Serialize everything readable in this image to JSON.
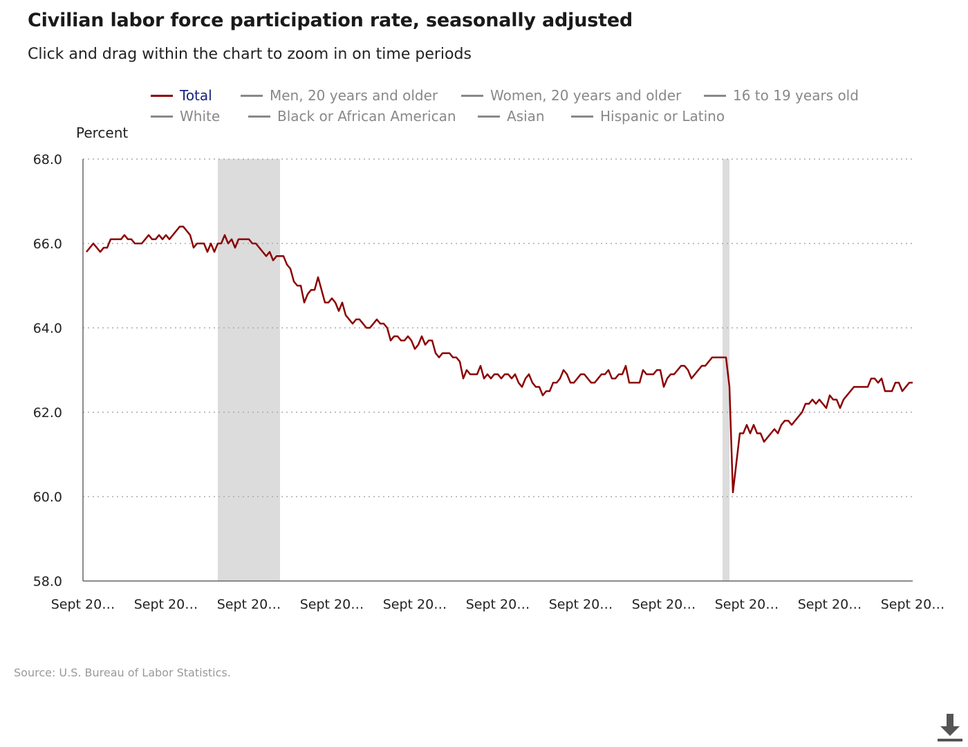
{
  "header": {
    "title": "Civilian labor force participation rate, seasonally adjusted",
    "subtitle": "Click and drag within the chart to zoom in on time periods"
  },
  "legend": [
    {
      "label": "Total",
      "active": true
    },
    {
      "label": "Men, 20 years and older",
      "active": false
    },
    {
      "label": "Women, 20 years and older",
      "active": false
    },
    {
      "label": "16 to 19 years old",
      "active": false
    },
    {
      "label": "White",
      "active": false
    },
    {
      "label": "Black or African American",
      "active": false
    },
    {
      "label": "Asian",
      "active": false
    },
    {
      "label": "Hispanic or Latino",
      "active": false
    }
  ],
  "source": "Source: U.S. Bureau of Labor Statistics.",
  "download_icon": "download-icon",
  "colors": {
    "series": "#8b0000",
    "recession": "#dcdcdc",
    "legend_active_text": "#1a237e",
    "legend_inactive": "#888888",
    "grid": "#aaaaaa"
  },
  "chart_data": {
    "type": "line",
    "ylabel": "Percent",
    "ylim": [
      58.0,
      68.0
    ],
    "yticks": [
      "58.0",
      "60.0",
      "62.0",
      "64.0",
      "66.0",
      "68.0"
    ],
    "xticks": [
      "Sept 20…",
      "Sept 20…",
      "Sept 20…",
      "Sept 20…",
      "Sept 20…",
      "Sept 20…",
      "Sept 20…",
      "Sept 20…",
      "Sept 20…",
      "Sept 20…",
      "Sept 20…"
    ],
    "xlim": [
      0,
      240
    ],
    "grid": "horizontal dotted",
    "recessions": [
      [
        39,
        57
      ],
      [
        185,
        187
      ]
    ],
    "series": [
      {
        "name": "Total",
        "values": [
          [
            1,
            65.8
          ],
          [
            3,
            66.0
          ],
          [
            5,
            65.8
          ],
          [
            6,
            65.9
          ],
          [
            7,
            65.9
          ],
          [
            8,
            66.1
          ],
          [
            10,
            66.1
          ],
          [
            11,
            66.1
          ],
          [
            12,
            66.2
          ],
          [
            13,
            66.1
          ],
          [
            14,
            66.1
          ],
          [
            15,
            66.0
          ],
          [
            17,
            66.0
          ],
          [
            18,
            66.1
          ],
          [
            19,
            66.2
          ],
          [
            20,
            66.1
          ],
          [
            21,
            66.1
          ],
          [
            22,
            66.2
          ],
          [
            23,
            66.1
          ],
          [
            24,
            66.2
          ],
          [
            25,
            66.1
          ],
          [
            26,
            66.2
          ],
          [
            27,
            66.3
          ],
          [
            28,
            66.4
          ],
          [
            29,
            66.4
          ],
          [
            30,
            66.3
          ],
          [
            31,
            66.2
          ],
          [
            32,
            65.9
          ],
          [
            33,
            66.0
          ],
          [
            35,
            66.0
          ],
          [
            36,
            65.8
          ],
          [
            37,
            66.0
          ],
          [
            38,
            65.8
          ],
          [
            39,
            66.0
          ],
          [
            40,
            66.0
          ],
          [
            41,
            66.2
          ],
          [
            42,
            66.0
          ],
          [
            43,
            66.1
          ],
          [
            44,
            65.9
          ],
          [
            45,
            66.1
          ],
          [
            48,
            66.1
          ],
          [
            49,
            66.0
          ],
          [
            50,
            66.0
          ],
          [
            51,
            65.9
          ],
          [
            52,
            65.8
          ],
          [
            53,
            65.7
          ],
          [
            54,
            65.8
          ],
          [
            55,
            65.6
          ],
          [
            56,
            65.7
          ],
          [
            58,
            65.7
          ],
          [
            59,
            65.5
          ],
          [
            60,
            65.4
          ],
          [
            61,
            65.1
          ],
          [
            62,
            65.0
          ],
          [
            63,
            65.0
          ],
          [
            64,
            64.6
          ],
          [
            65,
            64.8
          ],
          [
            66,
            64.9
          ],
          [
            67,
            64.9
          ],
          [
            68,
            65.2
          ],
          [
            69,
            64.9
          ],
          [
            70,
            64.6
          ],
          [
            71,
            64.6
          ],
          [
            72,
            64.7
          ],
          [
            73,
            64.6
          ],
          [
            74,
            64.4
          ],
          [
            75,
            64.6
          ],
          [
            76,
            64.3
          ],
          [
            77,
            64.2
          ],
          [
            78,
            64.1
          ],
          [
            79,
            64.2
          ],
          [
            80,
            64.2
          ],
          [
            81,
            64.1
          ],
          [
            82,
            64.0
          ],
          [
            83,
            64.0
          ],
          [
            84,
            64.1
          ],
          [
            85,
            64.2
          ],
          [
            86,
            64.1
          ],
          [
            87,
            64.1
          ],
          [
            88,
            64.0
          ],
          [
            89,
            63.7
          ],
          [
            90,
            63.8
          ],
          [
            91,
            63.8
          ],
          [
            92,
            63.7
          ],
          [
            93,
            63.7
          ],
          [
            94,
            63.8
          ],
          [
            95,
            63.7
          ],
          [
            96,
            63.5
          ],
          [
            97,
            63.6
          ],
          [
            98,
            63.8
          ],
          [
            99,
            63.6
          ],
          [
            100,
            63.7
          ],
          [
            101,
            63.7
          ],
          [
            102,
            63.4
          ],
          [
            103,
            63.3
          ],
          [
            104,
            63.4
          ],
          [
            106,
            63.4
          ],
          [
            107,
            63.3
          ],
          [
            108,
            63.3
          ],
          [
            109,
            63.2
          ],
          [
            110,
            62.8
          ],
          [
            111,
            63.0
          ],
          [
            112,
            62.9
          ],
          [
            114,
            62.9
          ],
          [
            115,
            63.1
          ],
          [
            116,
            62.8
          ],
          [
            117,
            62.9
          ],
          [
            118,
            62.8
          ],
          [
            119,
            62.9
          ],
          [
            120,
            62.9
          ],
          [
            121,
            62.8
          ],
          [
            122,
            62.9
          ],
          [
            123,
            62.9
          ],
          [
            124,
            62.8
          ],
          [
            125,
            62.9
          ],
          [
            126,
            62.7
          ],
          [
            127,
            62.6
          ],
          [
            128,
            62.8
          ],
          [
            129,
            62.9
          ],
          [
            130,
            62.7
          ],
          [
            131,
            62.6
          ],
          [
            132,
            62.6
          ],
          [
            133,
            62.4
          ],
          [
            134,
            62.5
          ],
          [
            135,
            62.5
          ],
          [
            136,
            62.7
          ],
          [
            137,
            62.7
          ],
          [
            138,
            62.8
          ],
          [
            139,
            63.0
          ],
          [
            140,
            62.9
          ],
          [
            141,
            62.7
          ],
          [
            142,
            62.7
          ],
          [
            143,
            62.8
          ],
          [
            144,
            62.9
          ],
          [
            145,
            62.9
          ],
          [
            146,
            62.8
          ],
          [
            147,
            62.7
          ],
          [
            148,
            62.7
          ],
          [
            149,
            62.8
          ],
          [
            150,
            62.9
          ],
          [
            151,
            62.9
          ],
          [
            152,
            63.0
          ],
          [
            153,
            62.8
          ],
          [
            154,
            62.8
          ],
          [
            155,
            62.9
          ],
          [
            156,
            62.9
          ],
          [
            157,
            63.1
          ],
          [
            158,
            62.7
          ],
          [
            161,
            62.7
          ],
          [
            162,
            63.0
          ],
          [
            163,
            62.9
          ],
          [
            165,
            62.9
          ],
          [
            166,
            63.0
          ],
          [
            167,
            63.0
          ],
          [
            168,
            62.6
          ],
          [
            169,
            62.8
          ],
          [
            170,
            62.9
          ],
          [
            171,
            62.9
          ],
          [
            172,
            63.0
          ],
          [
            173,
            63.1
          ],
          [
            174,
            63.1
          ],
          [
            175,
            63.0
          ],
          [
            176,
            62.8
          ],
          [
            177,
            62.9
          ],
          [
            178,
            63.0
          ],
          [
            179,
            63.1
          ],
          [
            180,
            63.1
          ],
          [
            181,
            63.2
          ],
          [
            182,
            63.3
          ],
          [
            186,
            63.3
          ],
          [
            187,
            62.6
          ],
          [
            188,
            60.1
          ],
          [
            190,
            61.5
          ],
          [
            191,
            61.5
          ],
          [
            192,
            61.7
          ],
          [
            193,
            61.5
          ],
          [
            194,
            61.7
          ],
          [
            195,
            61.5
          ],
          [
            196,
            61.5
          ],
          [
            197,
            61.3
          ],
          [
            198,
            61.4
          ],
          [
            199,
            61.5
          ],
          [
            200,
            61.6
          ],
          [
            201,
            61.5
          ],
          [
            202,
            61.7
          ],
          [
            203,
            61.8
          ],
          [
            204,
            61.8
          ],
          [
            205,
            61.7
          ],
          [
            206,
            61.8
          ],
          [
            207,
            61.9
          ],
          [
            208,
            62.0
          ],
          [
            209,
            62.2
          ],
          [
            210,
            62.2
          ],
          [
            211,
            62.3
          ],
          [
            212,
            62.2
          ],
          [
            213,
            62.3
          ],
          [
            214,
            62.2
          ],
          [
            215,
            62.1
          ],
          [
            216,
            62.4
          ],
          [
            217,
            62.3
          ],
          [
            218,
            62.3
          ],
          [
            219,
            62.1
          ],
          [
            220,
            62.3
          ],
          [
            221,
            62.4
          ],
          [
            222,
            62.5
          ],
          [
            223,
            62.6
          ],
          [
            227,
            62.6
          ],
          [
            228,
            62.8
          ],
          [
            229,
            62.8
          ],
          [
            230,
            62.7
          ],
          [
            231,
            62.8
          ],
          [
            232,
            62.5
          ],
          [
            234,
            62.5
          ],
          [
            235,
            62.7
          ],
          [
            236,
            62.7
          ],
          [
            237,
            62.5
          ],
          [
            238,
            62.6
          ],
          [
            239,
            62.7
          ],
          [
            240,
            62.7
          ]
        ]
      }
    ]
  }
}
